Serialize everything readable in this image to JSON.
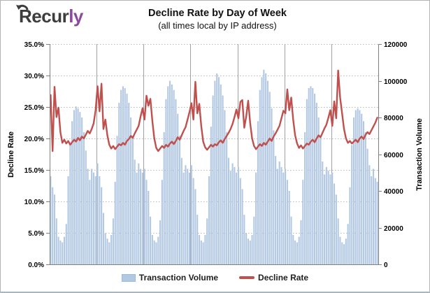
{
  "logo": {
    "text_dark": "Recur",
    "text_accent": "ly",
    "color_dark": "#3d3d3d",
    "color_accent": "#8c4a9e"
  },
  "header": {
    "title": "Decline Rate by Day of Week",
    "subtitle": "(all times local by IP address)"
  },
  "legend": {
    "items": [
      {
        "label": "Transaction Volume",
        "swatch": "bar",
        "color": "#b3c8e3"
      },
      {
        "label": "Decline Rate",
        "swatch": "line",
        "color": "#c0504d"
      }
    ]
  },
  "chart_data": {
    "type": "combo-bar-line",
    "title": "Decline Rate by Day of Week",
    "subtitle": "(all times local by IP address)",
    "x_description": "168 hourly points spanning 7 days of week; solid vertical gridlines mark day boundaries",
    "days": 7,
    "hours_per_day": 24,
    "legend_position": "bottom",
    "grid": {
      "horizontal": "dotted every 5% on left axis",
      "vertical": "solid at day boundaries"
    },
    "left_axis": {
      "label": "Decline Rate",
      "min": 0,
      "max": 35,
      "tick_step": 5,
      "unit": "%",
      "tick_labels": [
        "0.0%",
        "5.0%",
        "10.0%",
        "15.0%",
        "20.0%",
        "25.0%",
        "30.0%",
        "35.0%"
      ]
    },
    "right_axis": {
      "label": "Transaction Volume",
      "min": 0,
      "max": 120000,
      "tick_step": 20000,
      "tick_labels": [
        "0",
        "20000",
        "40000",
        "60000",
        "80000",
        "100000",
        "120000"
      ]
    },
    "series": [
      {
        "name": "Transaction Volume",
        "type": "bar",
        "axis": "right",
        "color": "#b3c8e3",
        "values": [
          48000,
          42000,
          38000,
          25000,
          15000,
          13000,
          12000,
          15000,
          22000,
          48000,
          65000,
          78000,
          84000,
          86000,
          85000,
          83000,
          80000,
          72000,
          62000,
          52000,
          46000,
          52000,
          50000,
          48000,
          55000,
          48000,
          42000,
          28000,
          17000,
          14000,
          12000,
          16000,
          25000,
          45000,
          70000,
          88000,
          95000,
          97000,
          96000,
          93000,
          88000,
          80000,
          70000,
          57000,
          50000,
          55000,
          52000,
          50000,
          52000,
          46000,
          40000,
          26000,
          16000,
          13000,
          12000,
          15000,
          24000,
          46000,
          72000,
          90000,
          97000,
          100000,
          98000,
          95000,
          90000,
          82000,
          70000,
          58000,
          50000,
          54000,
          52000,
          50000,
          54000,
          47000,
          41000,
          27000,
          16000,
          13000,
          12000,
          16000,
          25000,
          48000,
          75000,
          92000,
          100000,
          104000,
          102000,
          98000,
          92000,
          84000,
          72000,
          58000,
          51000,
          55000,
          53000,
          50000,
          53000,
          47000,
          41000,
          27000,
          17000,
          14000,
          13000,
          16000,
          26000,
          50000,
          78000,
          95000,
          102000,
          106000,
          104000,
          100000,
          94000,
          85000,
          73000,
          59000,
          52000,
          56000,
          53000,
          50000,
          52000,
          46000,
          40000,
          26000,
          16000,
          13000,
          12000,
          15000,
          24000,
          46000,
          72000,
          90000,
          96000,
          97000,
          96000,
          93000,
          88000,
          80000,
          69000,
          56000,
          49000,
          53000,
          51000,
          49000,
          50000,
          44000,
          38000,
          25000,
          15000,
          12000,
          11000,
          14000,
          22000,
          42000,
          65000,
          80000,
          84000,
          85000,
          84000,
          82000,
          78000,
          72000,
          63000,
          54000,
          48000,
          52000,
          47000,
          45000
        ]
      },
      {
        "name": "Decline Rate",
        "type": "line",
        "axis": "left",
        "unit": "%",
        "color": "#c0504d",
        "values": [
          26.9,
          18.0,
          28.2,
          23.4,
          24.9,
          21.0,
          19.3,
          19.8,
          19.2,
          19.6,
          19.0,
          19.4,
          19.8,
          19.5,
          20.1,
          19.7,
          20.3,
          20.0,
          20.6,
          21.2,
          20.8,
          21.5,
          22.4,
          24.5,
          28.3,
          24.3,
          28.7,
          21.5,
          23.0,
          20.5,
          19.0,
          18.4,
          18.8,
          18.3,
          18.7,
          19.1,
          18.9,
          19.3,
          19.0,
          19.6,
          19.9,
          20.4,
          20.1,
          20.8,
          21.4,
          22.0,
          23.5,
          24.8,
          23.0,
          26.8,
          25.2,
          26.3,
          22.8,
          20.0,
          18.5,
          18.0,
          18.4,
          18.8,
          18.5,
          19.0,
          18.7,
          19.2,
          19.5,
          19.1,
          19.6,
          20.2,
          19.8,
          20.5,
          21.2,
          21.8,
          23.0,
          24.2,
          25.6,
          23.0,
          29.0,
          24.0,
          25.5,
          22.0,
          19.5,
          18.6,
          18.2,
          18.6,
          19.0,
          18.7,
          19.1,
          18.9,
          19.4,
          19.7,
          19.3,
          19.9,
          20.4,
          20.9,
          21.5,
          22.3,
          23.4,
          24.6,
          23.2,
          25.8,
          26.1,
          21.7,
          23.5,
          26.0,
          22.5,
          20.0,
          18.8,
          18.3,
          18.7,
          19.1,
          18.8,
          19.3,
          19.0,
          19.5,
          20.0,
          19.6,
          20.3,
          20.8,
          21.4,
          22.0,
          23.2,
          24.4,
          24.0,
          27.8,
          24.5,
          26.5,
          23.0,
          20.5,
          19.2,
          18.5,
          18.9,
          18.4,
          18.8,
          19.2,
          19.0,
          19.5,
          19.8,
          19.4,
          20.0,
          20.5,
          20.2,
          20.9,
          21.6,
          22.2,
          23.3,
          24.5,
          22.0,
          25.9,
          23.2,
          30.8,
          26.5,
          24.0,
          21.5,
          20.0,
          19.3,
          19.6,
          19.2,
          19.5,
          19.8,
          19.4,
          20.0,
          20.3,
          19.9,
          20.6,
          21.0,
          20.7,
          21.3,
          21.9,
          22.5,
          23.3
        ]
      }
    ]
  },
  "style": {
    "bar_fill": "#b3c8e3",
    "line_stroke": "#c0504d",
    "axis_stroke": "#7f7f7f",
    "h_grid_stroke": "#b8b8b8",
    "v_grid_stroke": "#a0a0a0"
  }
}
